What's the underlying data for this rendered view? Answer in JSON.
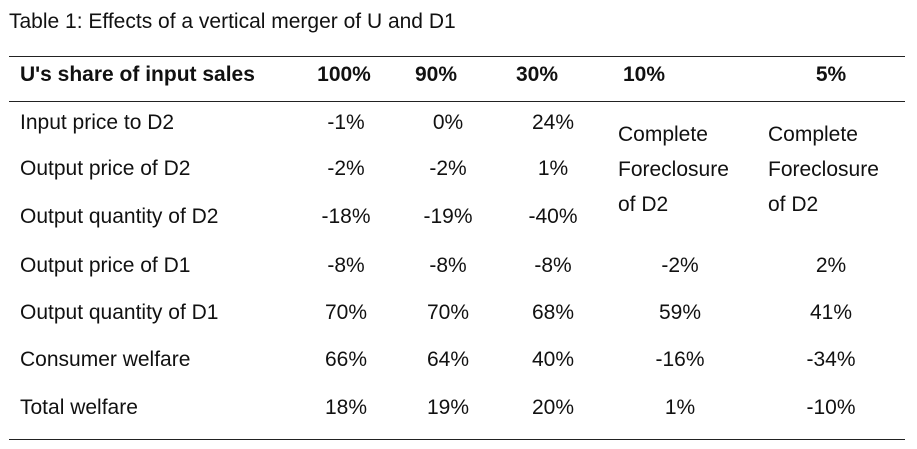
{
  "title": "Table 1: Effects of a vertical merger of U and D1",
  "header": {
    "row_label": "U's share of input sales",
    "columns": [
      "100%",
      "90%",
      "30%",
      "10%",
      "5%"
    ]
  },
  "rows": [
    {
      "label": "Input price to D2",
      "values": [
        "-1%",
        "0%",
        "24%",
        null,
        null
      ]
    },
    {
      "label": "Output price of D2",
      "values": [
        "-2%",
        "-2%",
        "1%",
        null,
        null
      ]
    },
    {
      "label": "Output quantity of D2",
      "values": [
        "-18%",
        "-19%",
        "-40%",
        null,
        null
      ]
    },
    {
      "label": "Output price of D1",
      "values": [
        "-8%",
        "-8%",
        "-8%",
        "-2%",
        "2%"
      ]
    },
    {
      "label": "Output quantity of D1",
      "values": [
        "70%",
        "70%",
        "68%",
        "59%",
        "41%"
      ]
    },
    {
      "label": "Consumer welfare",
      "values": [
        "66%",
        "64%",
        "40%",
        "-16%",
        "-34%"
      ]
    },
    {
      "label": "Total welfare",
      "values": [
        "18%",
        "19%",
        "20%",
        "1%",
        "-10%"
      ]
    }
  ],
  "foreclosure_note": {
    "col_10": [
      "Complete",
      "Foreclosure",
      "of D2"
    ],
    "col_5": [
      "Complete",
      "Foreclosure",
      "of D2"
    ]
  }
}
